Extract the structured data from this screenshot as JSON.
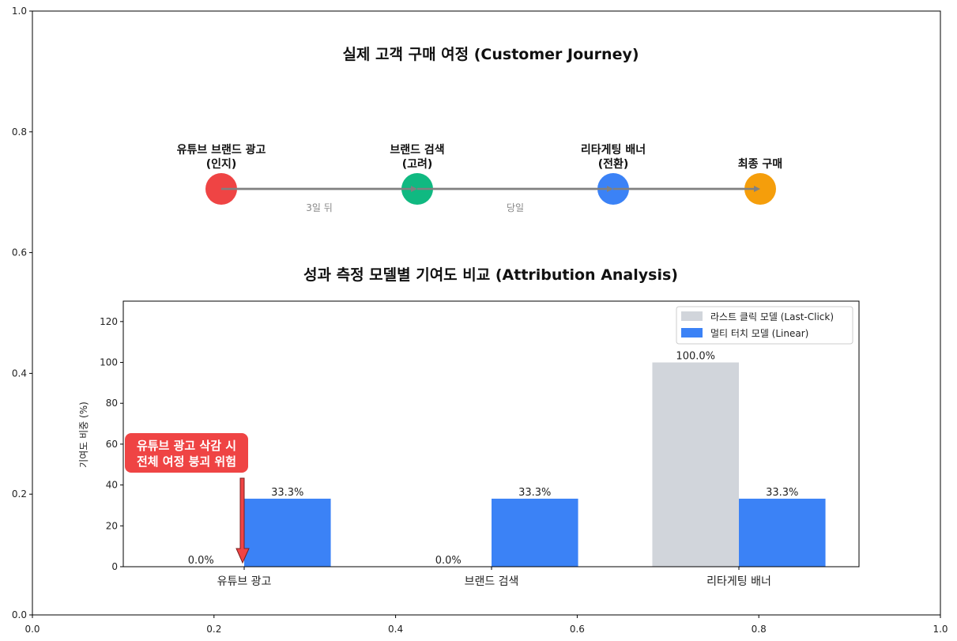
{
  "colors": {
    "stage1": "#ef4444",
    "stage2": "#10b981",
    "stage3": "#3b82f6",
    "stage4": "#f59e0b",
    "connector": "#808080",
    "last_click": "#d1d5db",
    "linear": "#3b82f6",
    "warning": "#ef4444"
  },
  "outer_axes": {
    "x_ticks": [
      "0.0",
      "0.2",
      "0.4",
      "0.6",
      "0.8",
      "1.0"
    ],
    "y_ticks": [
      "0.0",
      "0.2",
      "0.4",
      "0.6",
      "0.8",
      "1.0"
    ]
  },
  "journey": {
    "title": "실제 고객 구매 여정 (Customer Journey)",
    "stages": [
      {
        "line1": "유튜브 브랜드 광고",
        "line2": "(인지)"
      },
      {
        "line1": "브랜드 검색",
        "line2": "(고려)"
      },
      {
        "line1": "리타게팅 배너",
        "line2": "(전환)"
      },
      {
        "line1": "",
        "line2": "최종 구매"
      }
    ],
    "gaps": [
      "3일 뒤",
      "당일"
    ]
  },
  "chart_data": {
    "type": "bar",
    "title": "성과 측정 모델별 기여도 비교 (Attribution Analysis)",
    "xlabel": "",
    "ylabel": "기여도 비중 (%)",
    "categories": [
      "유튜브 광고",
      "브랜드 검색",
      "리타게팅 배너"
    ],
    "series": [
      {
        "name": "라스트 클릭 모델 (Last-Click)",
        "values": [
          0,
          0,
          100
        ],
        "labels": [
          "0.0%",
          "0.0%",
          "100.0%"
        ]
      },
      {
        "name": "멀티 터치 모델 (Linear)",
        "values": [
          33.3,
          33.3,
          33.3
        ],
        "labels": [
          "33.3%",
          "33.3%",
          "33.3%"
        ]
      }
    ],
    "ylim": [
      0,
      130
    ],
    "y_ticks": [
      "0",
      "20",
      "40",
      "60",
      "80",
      "100",
      "120"
    ],
    "legend_position": "top-right",
    "grid": false,
    "annotation": {
      "line1": "유튜브 광고 삭감 시",
      "line2": "전체 여정 붕괴 위험",
      "target_category": "유튜브 광고"
    }
  }
}
